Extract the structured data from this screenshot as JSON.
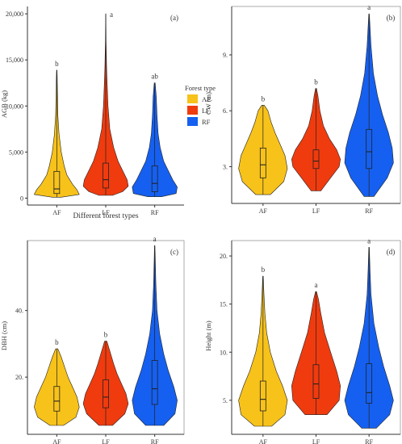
{
  "colors": {
    "AF": "#f7c21a",
    "LF": "#f03b0f",
    "RF": "#1560f0"
  },
  "legend": {
    "title": "Forest type",
    "items": [
      {
        "key": "AF",
        "label": "AF"
      },
      {
        "key": "LF",
        "label": "LF"
      },
      {
        "key": "RF",
        "label": "RF"
      }
    ]
  },
  "chart_data": [
    {
      "type": "violin",
      "panel": "(a)",
      "ylabel": "AGB (kg)",
      "xlabel": "Different forest types",
      "categories": [
        "AF",
        "LF",
        "RF"
      ],
      "ylim": [
        -400,
        20800
      ],
      "yticks": [
        0,
        5000,
        10000,
        15000,
        20000
      ],
      "ytick_labels": [
        "0",
        "5,000",
        "10,000",
        "15,000",
        "20,000"
      ],
      "letters": [
        "b",
        "a",
        "ab"
      ],
      "series": [
        {
          "name": "AF",
          "min": 100,
          "q1": 500,
          "median": 1000,
          "q3": 2900,
          "max": 13900,
          "profile": [
            [
              100,
              0.2
            ],
            [
              400,
              1
            ],
            [
              900,
              0.9
            ],
            [
              1500,
              0.7
            ],
            [
              2500,
              0.45
            ],
            [
              3500,
              0.33
            ],
            [
              5000,
              0.2
            ],
            [
              7000,
              0.1
            ],
            [
              9000,
              0.05
            ],
            [
              11000,
              0.035
            ],
            [
              13000,
              0.02
            ],
            [
              13900,
              0.01
            ]
          ]
        },
        {
          "name": "LF",
          "min": 300,
          "q1": 1100,
          "median": 2000,
          "q3": 3800,
          "max": 20000,
          "profile": [
            [
              300,
              0.3
            ],
            [
              700,
              0.75
            ],
            [
              1300,
              1
            ],
            [
              2000,
              0.95
            ],
            [
              3000,
              0.75
            ],
            [
              4000,
              0.55
            ],
            [
              5500,
              0.35
            ],
            [
              7500,
              0.18
            ],
            [
              10000,
              0.1
            ],
            [
              12500,
              0.06
            ],
            [
              14000,
              0.04
            ],
            [
              17000,
              0.015
            ],
            [
              20000,
              0.005
            ]
          ]
        },
        {
          "name": "RF",
          "min": 150,
          "q1": 700,
          "median": 1600,
          "q3": 3500,
          "max": 12500,
          "profile": [
            [
              150,
              0.3
            ],
            [
              500,
              0.95
            ],
            [
              1200,
              1
            ],
            [
              2000,
              0.8
            ],
            [
              3000,
              0.6
            ],
            [
              4000,
              0.4
            ],
            [
              5500,
              0.24
            ],
            [
              7000,
              0.15
            ],
            [
              9000,
              0.1
            ],
            [
              11000,
              0.07
            ],
            [
              12500,
              0.02
            ]
          ]
        }
      ]
    },
    {
      "type": "violin",
      "panel": "(b)",
      "ylabel": "CW (m)",
      "xlabel": "",
      "categories": [
        "AF",
        "LF",
        "RF"
      ],
      "ylim": [
        1.2,
        11.6
      ],
      "yticks": [
        3,
        6,
        9
      ],
      "ytick_labels": [
        "3.",
        "6.",
        "9."
      ],
      "letters": [
        "b",
        "b",
        "a"
      ],
      "series": [
        {
          "name": "AF",
          "min": 1.5,
          "q1": 2.4,
          "median": 3.1,
          "q3": 4.0,
          "max": 6.3,
          "profile": [
            [
              1.5,
              0.3
            ],
            [
              2.2,
              0.85
            ],
            [
              2.9,
              1
            ],
            [
              3.6,
              0.9
            ],
            [
              4.2,
              0.7
            ],
            [
              4.8,
              0.5
            ],
            [
              5.4,
              0.33
            ],
            [
              6.0,
              0.2
            ],
            [
              6.3,
              0.05
            ]
          ]
        },
        {
          "name": "LF",
          "min": 1.7,
          "q1": 2.9,
          "median": 3.3,
          "q3": 3.9,
          "max": 7.2,
          "profile": [
            [
              1.7,
              0.2
            ],
            [
              2.4,
              0.6
            ],
            [
              3.0,
              0.95
            ],
            [
              3.4,
              1
            ],
            [
              3.9,
              0.85
            ],
            [
              4.5,
              0.55
            ],
            [
              5.2,
              0.3
            ],
            [
              6.0,
              0.16
            ],
            [
              6.8,
              0.08
            ],
            [
              7.2,
              0.02
            ]
          ]
        },
        {
          "name": "RF",
          "min": 1.4,
          "q1": 2.9,
          "median": 3.8,
          "q3": 5.0,
          "max": 11.2,
          "profile": [
            [
              1.4,
              0.2
            ],
            [
              2.4,
              0.75
            ],
            [
              3.2,
              1
            ],
            [
              4.0,
              0.95
            ],
            [
              4.8,
              0.8
            ],
            [
              5.8,
              0.55
            ],
            [
              6.8,
              0.35
            ],
            [
              8.0,
              0.18
            ],
            [
              9.5,
              0.08
            ],
            [
              10.5,
              0.04
            ],
            [
              11.2,
              0.01
            ]
          ]
        }
      ]
    },
    {
      "type": "violin",
      "panel": "(c)",
      "ylabel": "DBH (cm)",
      "xlabel": "",
      "categories": [
        "AF",
        "LF",
        "RF"
      ],
      "ylim": [
        3.8,
        61
      ],
      "yticks": [
        20,
        40
      ],
      "ytick_labels": [
        "20.",
        "40."
      ],
      "letters": [
        "b",
        "b",
        "a"
      ],
      "series": [
        {
          "name": "AF",
          "min": 5.5,
          "q1": 9.8,
          "median": 12.8,
          "q3": 17.2,
          "max": 28.5,
          "profile": [
            [
              5.5,
              0.3
            ],
            [
              8,
              0.85
            ],
            [
              11,
              1
            ],
            [
              14,
              0.9
            ],
            [
              17,
              0.7
            ],
            [
              20,
              0.5
            ],
            [
              23,
              0.35
            ],
            [
              26,
              0.2
            ],
            [
              28.5,
              0.05
            ]
          ]
        },
        {
          "name": "LF",
          "min": 5.5,
          "q1": 10.8,
          "median": 14.0,
          "q3": 19.2,
          "max": 30.8,
          "profile": [
            [
              5.5,
              0.3
            ],
            [
              9,
              0.85
            ],
            [
              12,
              1
            ],
            [
              15,
              0.9
            ],
            [
              18,
              0.7
            ],
            [
              21,
              0.5
            ],
            [
              24,
              0.35
            ],
            [
              27,
              0.22
            ],
            [
              30.8,
              0.05
            ]
          ]
        },
        {
          "name": "RF",
          "min": 5.5,
          "q1": 11.8,
          "median": 16.5,
          "q3": 25.0,
          "max": 59.5,
          "profile": [
            [
              5.5,
              0.4
            ],
            [
              9,
              0.9
            ],
            [
              13,
              1
            ],
            [
              17,
              0.85
            ],
            [
              22,
              0.6
            ],
            [
              27,
              0.4
            ],
            [
              33,
              0.22
            ],
            [
              40,
              0.1
            ],
            [
              48,
              0.05
            ],
            [
              55,
              0.025
            ],
            [
              59.5,
              0.01
            ]
          ]
        }
      ]
    },
    {
      "type": "violin",
      "panel": "(d)",
      "ylabel": "Height (m)",
      "xlabel": "",
      "categories": [
        "AF",
        "LF",
        "RF"
      ],
      "ylim": [
        1.8,
        21.6
      ],
      "yticks": [
        5,
        10,
        15,
        20
      ],
      "ytick_labels": [
        "5.",
        "10.",
        "15.",
        "20."
      ],
      "letters": [
        "b",
        "a",
        "a"
      ],
      "series": [
        {
          "name": "AF",
          "min": 2.3,
          "q1": 3.9,
          "median": 5.1,
          "q3": 7.0,
          "max": 17.9,
          "profile": [
            [
              2.3,
              0.35
            ],
            [
              3.5,
              0.9
            ],
            [
              5,
              1
            ],
            [
              6.5,
              0.8
            ],
            [
              8,
              0.55
            ],
            [
              10,
              0.3
            ],
            [
              12,
              0.15
            ],
            [
              14,
              0.08
            ],
            [
              16,
              0.04
            ],
            [
              17.9,
              0.01
            ]
          ]
        },
        {
          "name": "LF",
          "min": 3.5,
          "q1": 5.2,
          "median": 6.7,
          "q3": 8.7,
          "max": 16.3,
          "profile": [
            [
              3.5,
              0.45
            ],
            [
              5,
              0.95
            ],
            [
              6.5,
              1
            ],
            [
              8,
              0.85
            ],
            [
              10,
              0.6
            ],
            [
              12,
              0.35
            ],
            [
              14,
              0.2
            ],
            [
              15.5,
              0.1
            ],
            [
              16.3,
              0.02
            ]
          ]
        },
        {
          "name": "RF",
          "min": 2.1,
          "q1": 4.7,
          "median": 5.8,
          "q3": 8.8,
          "max": 20.9,
          "profile": [
            [
              2.1,
              0.3
            ],
            [
              3.5,
              0.85
            ],
            [
              5,
              1
            ],
            [
              6.5,
              0.85
            ],
            [
              8.5,
              0.6
            ],
            [
              10.5,
              0.4
            ],
            [
              13,
              0.2
            ],
            [
              16,
              0.08
            ],
            [
              18.5,
              0.04
            ],
            [
              20.9,
              0.01
            ]
          ]
        }
      ]
    }
  ]
}
